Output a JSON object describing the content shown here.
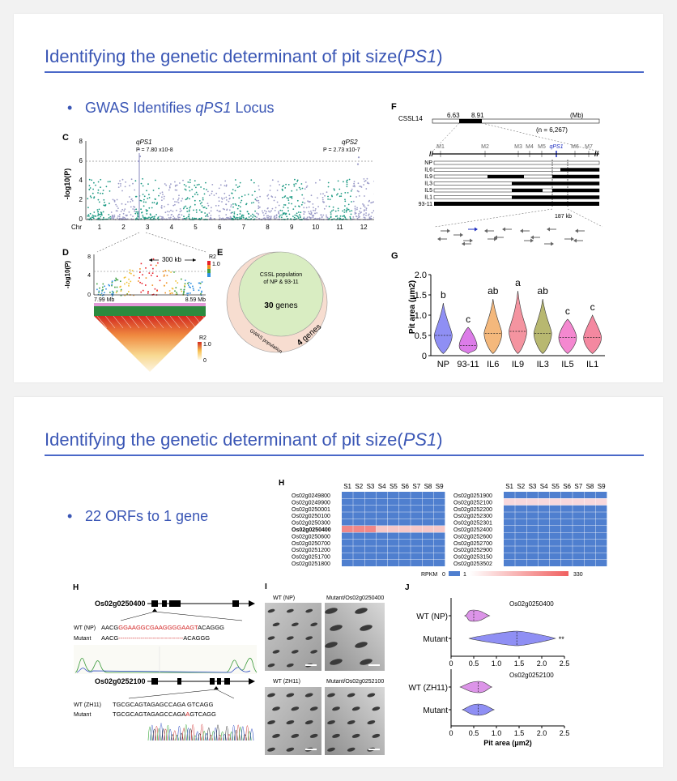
{
  "slides": [
    {
      "title_main": "Identifying the genetic determinant of pit size(",
      "title_italic": "PS1",
      "title_end": ")",
      "bullet_pre": "GWAS Identifies ",
      "bullet_italic": "qPS1",
      "bullet_post": " Locus"
    },
    {
      "title_main": "Identifying the genetic determinant of pit size(",
      "title_italic": "PS1",
      "title_end": ")",
      "bullet": "22 ORFs to 1 gene"
    }
  ],
  "panel_c": {
    "letter": "C",
    "ylabel": "-log10(P)",
    "peak1_name": "qPS1",
    "peak1_p": "P = 7.80 x10-8",
    "peak2_name": "qPS2",
    "peak2_p": "P = 2.73 x10-7",
    "chr_label": "Chr",
    "y_ticks": [
      "0",
      "2",
      "4",
      "6",
      "8"
    ],
    "chromosomes": [
      "1",
      "2",
      "3",
      "4",
      "5",
      "6",
      "7",
      "8",
      "9",
      "10",
      "11",
      "12"
    ]
  },
  "panel_d": {
    "letter": "D",
    "ylabel": "-log10(P)",
    "span": "300 kb",
    "left_mb": "7.99 Mb",
    "right_mb": "8.59 Mb",
    "r2_label": "R2",
    "r2_max": "1.0",
    "r2_min": "0",
    "y_ticks": [
      "0",
      "4",
      "8"
    ]
  },
  "panel_e": {
    "letter": "E",
    "inner_text_1": "CSSL population",
    "inner_text_2": "of NP & 93-11",
    "inner_genes_num": "30",
    "inner_genes_word": " genes",
    "outer_label": "GWAS population",
    "outer_genes_num": "4",
    "outer_genes_word": " genes"
  },
  "panel_f": {
    "letter": "F",
    "cssl": "CSSL14",
    "pos1": "6.63",
    "pos2": "8.91",
    "unit": "(Mb)",
    "n_label": "(n = 6,267)",
    "markers": [
      "M1",
      "M2",
      "M3",
      "M4",
      "M5",
      "qPS1",
      "M6",
      "M7"
    ],
    "lines": [
      "NP",
      "IL6",
      "IL9",
      "IL3",
      "IL5",
      "IL1",
      "93-11"
    ],
    "kb": "187 kb"
  },
  "panel_g": {
    "letter": "G",
    "chart_data": {
      "type": "violin",
      "ylabel": "Pit area (μm2)",
      "ylim": [
        0,
        2.0
      ],
      "y_ticks": [
        "0",
        "0.5",
        "1.0",
        "1.5",
        "2.0"
      ],
      "categories": [
        "NP",
        "93-11",
        "IL6",
        "IL9",
        "IL3",
        "IL5",
        "IL1"
      ],
      "medians": [
        0.5,
        0.25,
        0.55,
        0.6,
        0.55,
        0.45,
        0.45
      ],
      "tops": [
        1.3,
        0.7,
        1.4,
        1.6,
        1.4,
        0.9,
        1.0
      ],
      "letters": [
        "b",
        "c",
        "ab",
        "a",
        "ab",
        "c",
        "c"
      ],
      "colors": [
        "#6a6af0",
        "#d050e0",
        "#f0a050",
        "#f07080",
        "#a0a040",
        "#f060c0",
        "#f06080"
      ]
    }
  },
  "panel_h_heat": {
    "letter": "H",
    "samples": [
      "S1",
      "S2",
      "S3",
      "S4",
      "S5",
      "S6",
      "S7",
      "S8",
      "S9"
    ],
    "left_genes": [
      "Os02g0249800",
      "Os02g0249900",
      "Os02g0250001",
      "Os02g0250100",
      "Os02g0250300",
      "Os02g0250400",
      "Os02g0250600",
      "Os02g0250700",
      "Os02g0251200",
      "Os02g0251700",
      "Os02g0251800"
    ],
    "right_genes": [
      "Os02g0251900",
      "Os02g0252100",
      "Os02g0252200",
      "Os02g0252300",
      "Os02g0252301",
      "Os02g0252400",
      "Os02g0252600",
      "Os02g0252700",
      "Os02g0252900",
      "Os02g0253150",
      "Os02g0253502"
    ],
    "bold_gene_index": 5,
    "rpkm_label": "RPKM",
    "rpkm_0": "0",
    "rpkm_1": "1",
    "rpkm_max": "330",
    "colors": {
      "low": "#4f7fcf",
      "high": "#f08888",
      "mid": "#f6c8c8"
    }
  },
  "panel_h_gene": {
    "letter": "H",
    "gene1": "Os02g0250400",
    "wt1_label": "WT (NP)",
    "wt1_seq_a": "AACG",
    "wt1_seq_del": "GGAAGGCGAAGGGGAAGT",
    "wt1_seq_b": "ACAGGG",
    "mut1_label": "Mutant",
    "mut1_seq_a": "AACG",
    "mut1_dashes": "--------------------------------",
    "mut1_seq_b": "ACAGGG",
    "gene2": "Os02g0252100",
    "wt2_label": "WT (ZH11)",
    "wt2_seq": "TGCGCAGTAGAGCCAGA GTCAGG",
    "mut2_label": "Mutant",
    "mut2_seq_a": "TGCGCAGTAGAGCCAGA",
    "mut2_ins": "A",
    "mut2_seq_b": "GTCAGG"
  },
  "panel_i": {
    "letter": "I",
    "labels": [
      "WT (NP)",
      "Mutant/Os02g0250400",
      "WT (ZH11)",
      "Mutant/Os02g0252100"
    ]
  },
  "panel_j": {
    "letter": "J",
    "chart_data": {
      "type": "violin",
      "xlabel": "Pit area (μm2)",
      "xlim": [
        0,
        2.5
      ],
      "x_ticks": [
        "0",
        "0.5",
        "1.0",
        "1.5",
        "2.0",
        "2.5"
      ],
      "groups": [
        {
          "gene": "Os02g0250400",
          "rows": [
            {
              "name": "WT (NP)",
              "median": 0.5,
              "min": 0.3,
              "max": 0.85,
              "color": "#d070e0"
            },
            {
              "name": "Mutant",
              "median": 1.45,
              "min": 0.4,
              "max": 2.3,
              "color": "#6a6af0",
              "sig": "**"
            }
          ]
        },
        {
          "gene": "Os02g0252100",
          "rows": [
            {
              "name": "WT (ZH11)",
              "median": 0.6,
              "min": 0.2,
              "max": 0.9,
              "color": "#d070e0"
            },
            {
              "name": "Mutant",
              "median": 0.6,
              "min": 0.25,
              "max": 0.95,
              "color": "#6a6af0"
            }
          ]
        }
      ]
    }
  }
}
